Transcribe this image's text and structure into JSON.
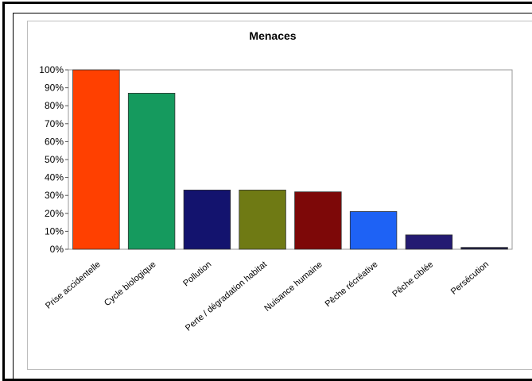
{
  "chart_data": {
    "type": "bar",
    "title": "Menaces",
    "xlabel": "",
    "ylabel": "",
    "ylim": [
      0,
      100
    ],
    "y_ticks": [
      "0%",
      "10%",
      "20%",
      "30%",
      "40%",
      "50%",
      "60%",
      "70%",
      "80%",
      "90%",
      "100%"
    ],
    "categories": [
      "Prise accidentelle",
      "Cycle biologique",
      "Pollution",
      "Perte / dégradation habitat",
      "Nuisance humaine",
      "Pêche récréative",
      "Pêche ciblée",
      "Persécution"
    ],
    "values": [
      100,
      87,
      33,
      33,
      32,
      21,
      8,
      1
    ],
    "colors": [
      "#ff4000",
      "#159a5e",
      "#13136e",
      "#6f7a14",
      "#7d0808",
      "#1e62f5",
      "#241a72",
      "#1a1a40"
    ],
    "grid": false,
    "legend": "none"
  }
}
